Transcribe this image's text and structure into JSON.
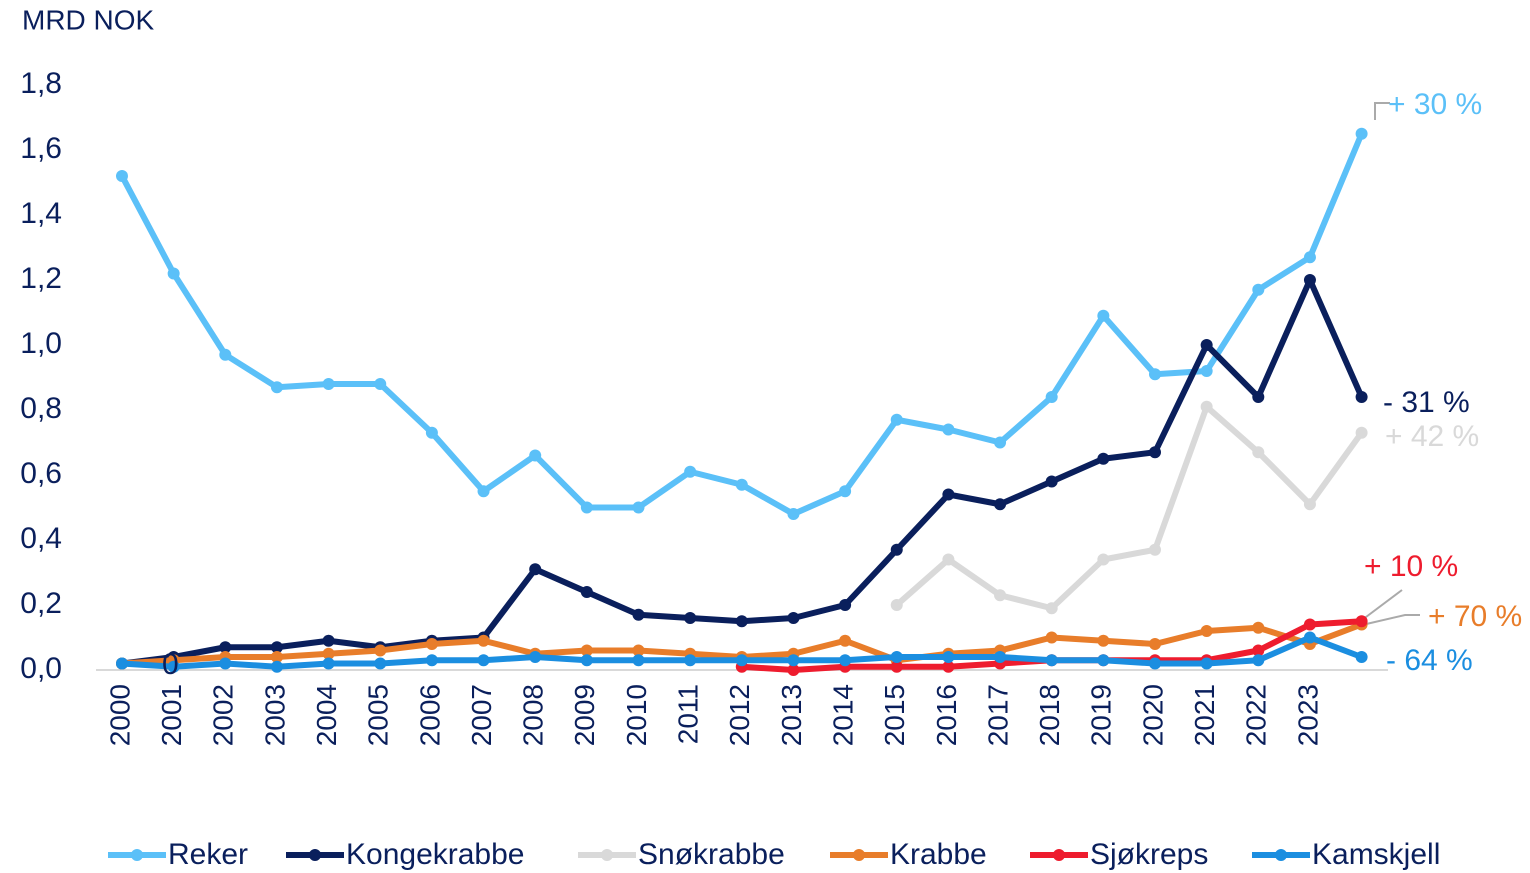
{
  "chart_data": {
    "type": "line",
    "y_label": "MRD NOK",
    "categories": [
      "2000",
      "2001",
      "2002",
      "2003",
      "2004",
      "2005",
      "2006",
      "2007",
      "2008",
      "2009",
      "2010",
      "2011",
      "2012",
      "2013",
      "2014",
      "2015",
      "2016",
      "2017",
      "2018",
      "2019",
      "2020",
      "2021",
      "2022",
      "2023",
      null
    ],
    "ylim": [
      0,
      1.8
    ],
    "yticks": [
      {
        "value": 0,
        "label": "0,0"
      },
      {
        "value": 0.2,
        "label": "0,2"
      },
      {
        "value": 0.4,
        "label": "0,4"
      },
      {
        "value": 0.6,
        "label": "0,6"
      },
      {
        "value": 0.8,
        "label": "0,8"
      },
      {
        "value": 1.0,
        "label": "1,0"
      },
      {
        "value": 1.2,
        "label": "1,2"
      },
      {
        "value": 1.4,
        "label": "1,4"
      },
      {
        "value": 1.6,
        "label": "1,6"
      },
      {
        "value": 1.8,
        "label": "1,8"
      }
    ],
    "series": [
      {
        "name": "Reker",
        "color": "#5bc0f8",
        "values": [
          1.52,
          1.22,
          0.97,
          0.87,
          0.88,
          0.88,
          0.73,
          0.55,
          0.66,
          0.5,
          0.5,
          0.61,
          0.57,
          0.48,
          0.55,
          0.77,
          0.74,
          0.7,
          0.84,
          1.09,
          0.91,
          0.92,
          1.17,
          1.27,
          1.65
        ]
      },
      {
        "name": "Kongekrabbe",
        "color": "#0a1f5c",
        "values": [
          0.02,
          0.04,
          0.07,
          0.07,
          0.09,
          0.07,
          0.09,
          0.1,
          0.31,
          0.24,
          0.17,
          0.16,
          0.15,
          0.16,
          0.2,
          0.37,
          0.54,
          0.51,
          0.58,
          0.65,
          0.67,
          1.0,
          0.84,
          1.2,
          0.84
        ]
      },
      {
        "name": "Snøkrabbe",
        "color": "#d9d9d9",
        "values": [
          null,
          null,
          null,
          null,
          null,
          null,
          null,
          null,
          null,
          null,
          null,
          null,
          null,
          null,
          null,
          0.2,
          0.34,
          0.23,
          0.19,
          0.34,
          0.37,
          0.81,
          0.67,
          0.51,
          0.73
        ]
      },
      {
        "name": "Krabbe",
        "color": "#e87d2a",
        "values": [
          0.02,
          0.03,
          0.04,
          0.04,
          0.05,
          0.06,
          0.08,
          0.09,
          0.05,
          0.06,
          0.06,
          0.05,
          0.04,
          0.05,
          0.09,
          0.03,
          0.05,
          0.06,
          0.1,
          0.09,
          0.08,
          0.12,
          0.13,
          0.08,
          0.14
        ]
      },
      {
        "name": "Sjøkreps",
        "color": "#ee1c2e",
        "values": [
          null,
          null,
          null,
          null,
          null,
          null,
          null,
          null,
          null,
          null,
          null,
          null,
          0.01,
          0.0,
          0.01,
          0.01,
          0.01,
          0.02,
          0.03,
          0.03,
          0.03,
          0.03,
          0.06,
          0.14,
          0.15
        ]
      },
      {
        "name": "Kamskjell",
        "color": "#1b8ee0",
        "values": [
          0.02,
          0.01,
          0.02,
          0.01,
          0.02,
          0.02,
          0.03,
          0.03,
          0.04,
          0.03,
          0.03,
          0.03,
          0.03,
          0.03,
          0.03,
          0.04,
          0.04,
          0.04,
          0.03,
          0.03,
          0.02,
          0.02,
          0.03,
          0.1,
          0.04
        ]
      }
    ],
    "annotations": [
      {
        "text": "+ 30 %",
        "color": "#5bc0f8"
      },
      {
        "text": "- 31 %",
        "color": "#0a1f5c"
      },
      {
        "text": "+ 42 %",
        "color": "#d9d9d9"
      },
      {
        "text": "+ 10 %",
        "color": "#ee1c2e"
      },
      {
        "text": "+ 70 %",
        "color": "#e87d2a"
      },
      {
        "text": "- 64 %",
        "color": "#1b8ee0"
      },
      {
        "text": "0",
        "color": "#0a1f5c"
      }
    ]
  }
}
